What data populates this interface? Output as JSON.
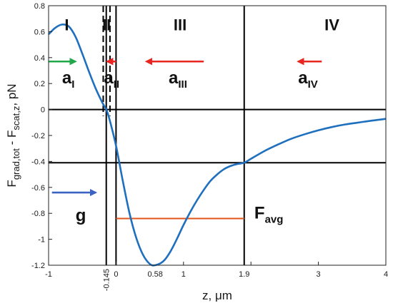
{
  "chart_data": {
    "type": "line",
    "xlabel": "z, μm",
    "ylabel_main": "F",
    "ylabel_sub1": "grad,tot",
    "ylabel_mid": " - F",
    "ylabel_sub2": "scat,z",
    "ylabel_tail": ", pN",
    "xlim": [
      -1,
      4
    ],
    "ylim": [
      -1.2,
      0.8
    ],
    "x_ticks": [
      -1,
      0,
      1,
      2,
      3,
      4
    ],
    "x_tick_labels": [
      "-1",
      "0",
      "1",
      "",
      "3",
      "4"
    ],
    "x_special_ticks": [
      {
        "value": -0.145,
        "label": "-0.145",
        "rotated": true
      },
      {
        "value": 0.58,
        "label": "0.58",
        "rotated": false
      },
      {
        "value": 1.9,
        "label": "1.9",
        "rotated": false
      }
    ],
    "y_ticks": [
      0.8,
      0.6,
      0.4,
      0.2,
      0,
      -0.2,
      -0.4,
      -0.6,
      -0.8,
      -1,
      -1.2
    ],
    "y_tick_labels": [
      "0.8",
      "0.6",
      "0.4",
      "0.2",
      "0",
      "-0.2",
      "-0.4",
      "-0.6",
      "-0.8",
      "-1",
      "-1.2"
    ],
    "grid": false,
    "series": [
      {
        "color": "#1f6fbf",
        "x": [
          -1,
          -0.9,
          -0.8,
          -0.7,
          -0.6,
          -0.5,
          -0.4,
          -0.3,
          -0.2,
          -0.145,
          -0.1,
          0,
          0.1,
          0.2,
          0.3,
          0.4,
          0.5,
          0.58,
          0.7,
          0.8,
          0.9,
          1.0,
          1.1,
          1.2,
          1.3,
          1.4,
          1.5,
          1.6,
          1.7,
          1.8,
          1.9,
          2.0,
          2.2,
          2.4,
          2.6,
          2.8,
          3.0,
          3.2,
          3.4,
          3.6,
          3.8,
          4.0
        ],
        "y": [
          0.58,
          0.63,
          0.655,
          0.64,
          0.56,
          0.43,
          0.29,
          0.16,
          0.05,
          0.0,
          -0.07,
          -0.28,
          -0.55,
          -0.8,
          -0.99,
          -1.12,
          -1.19,
          -1.2,
          -1.17,
          -1.1,
          -1.0,
          -0.89,
          -0.79,
          -0.7,
          -0.62,
          -0.55,
          -0.5,
          -0.46,
          -0.435,
          -0.42,
          -0.41,
          -0.38,
          -0.32,
          -0.27,
          -0.225,
          -0.19,
          -0.16,
          -0.135,
          -0.115,
          -0.1,
          -0.085,
          -0.072
        ]
      }
    ],
    "reference_lines": {
      "horizontal": [
        0,
        -0.41
      ],
      "vertical_solid": [
        -0.145,
        0,
        1.9
      ],
      "vertical_dashed": [
        -0.19,
        -0.09
      ]
    },
    "regions": [
      {
        "label": "I",
        "x": -0.73,
        "y": 0.61
      },
      {
        "label": "II",
        "x": -0.14,
        "y": 0.61
      },
      {
        "label": "III",
        "x": 0.95,
        "y": 0.61
      },
      {
        "label": "IV",
        "x": 3.2,
        "y": 0.61
      }
    ],
    "arrows": [
      {
        "x1": -1.0,
        "x2": -0.6,
        "y": 0.37,
        "color": "#22a84a"
      },
      {
        "x1": 0.0,
        "x2": -0.13,
        "y": 0.37,
        "color": "#e8251f"
      },
      {
        "x1": 1.3,
        "x2": 0.45,
        "y": 0.37,
        "color": "#e8251f"
      },
      {
        "x1": 3.05,
        "x2": 2.7,
        "y": 0.37,
        "color": "#e8251f"
      },
      {
        "x1": -0.95,
        "x2": -0.3,
        "y": -0.64,
        "color": "#3b64c2"
      }
    ],
    "favg_line": {
      "x1": 0.0,
      "x2": 1.9,
      "y": -0.84,
      "color": "#e0561a"
    },
    "annotations": [
      {
        "main": "a",
        "sub": "I",
        "x": -0.8,
        "y": 0.2
      },
      {
        "main": "a",
        "sub": "II",
        "x": -0.18,
        "y": 0.2
      },
      {
        "main": "a",
        "sub": "III",
        "x": 0.78,
        "y": 0.2
      },
      {
        "main": "a",
        "sub": "IV",
        "x": 2.7,
        "y": 0.2
      },
      {
        "main": "g",
        "sub": "",
        "x": -0.6,
        "y": -0.86
      },
      {
        "main": "F",
        "sub": "avg",
        "x": 2.05,
        "y": -0.84
      }
    ]
  }
}
